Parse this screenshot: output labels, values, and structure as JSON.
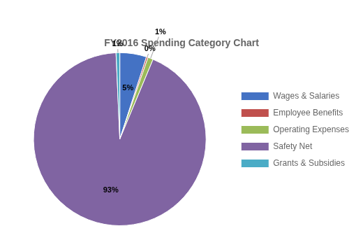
{
  "chart_data": {
    "type": "pie",
    "title": "FY2016 Spending Category Chart",
    "categories": [
      "Wages & Salaries",
      "Employee Benefits",
      "Operating Expenses",
      "Safety Net",
      "Grants & Subsidies"
    ],
    "values": [
      5,
      0.3,
      1,
      93,
      0.7
    ],
    "value_labels": [
      "5%",
      "0%",
      "1%",
      "93%",
      "1%"
    ],
    "colors": [
      "#4472C4",
      "#C0504D",
      "#9BBB59",
      "#8064A2",
      "#4BACC6"
    ],
    "legend": "right",
    "data_labels": true
  }
}
